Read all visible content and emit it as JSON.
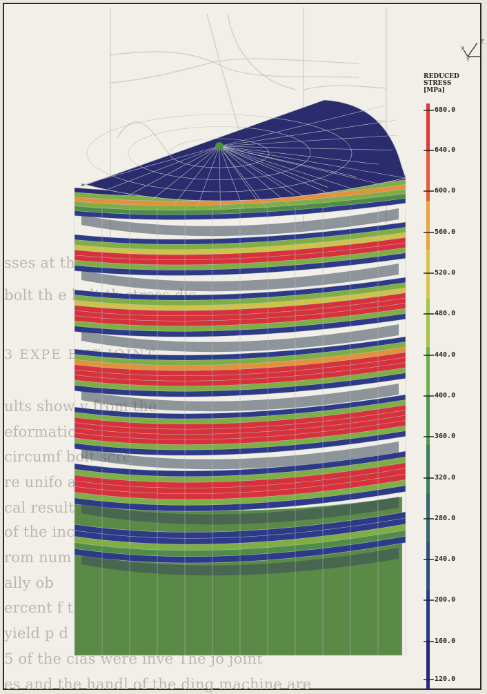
{
  "background_page": {
    "lines": [
      "sses at th                                                                  rev ence",
      "bolt th                                                  e bolt th   stress dis",
      "3   EXPE                                                         ENT JOINT",
      "ults show                                                        y from the",
      "eformation                                                        d and av",
      "circumf                                                       bolt scre",
      "re unifo                                                       ard stres",
      "cal result                                                         nfirm",
      "of the                                                           increase",
      "rom num                                                           bounds o",
      "ally ob",
      "ercent                                                           f the jo",
      "yield p                                                               d",
      "5 of the clas         were inve         The jo     joint",
      "es and the handl        of the     ding machine are  "
    ]
  },
  "coordinate_axes": {
    "x_label": "X",
    "y_label": "Y",
    "z_label": "Z"
  },
  "color_scale": {
    "title_lines": [
      "REDUCED",
      "STRESS",
      "[MPa]"
    ],
    "ticks": [
      "680.0",
      "640.0",
      "600.0",
      "560.0",
      "520.0",
      "480.0",
      "440.0",
      "400.0",
      "360.0",
      "320.0",
      "280.0",
      "240.0",
      "200.0",
      "160.0",
      "120.0"
    ],
    "gradient_colors": [
      "#e2383b",
      "#e85a3a",
      "#e8a53e",
      "#d9c44a",
      "#a8c24a",
      "#6fb04a",
      "#4e9a52",
      "#3c7d5e",
      "#35676a",
      "#2e4f7a",
      "#2a3a8a",
      "#232b7e"
    ]
  },
  "model_colors": {
    "top_cap": "#2b2c6e",
    "high": "#d7323c",
    "orange": "#e4913e",
    "yellow": "#cfc24a",
    "green": "#7eae45",
    "dark_green": "#4f8c45",
    "base": "#5a8a45",
    "blue": "#2d3a88",
    "mesh": "#b9c2c4"
  }
}
